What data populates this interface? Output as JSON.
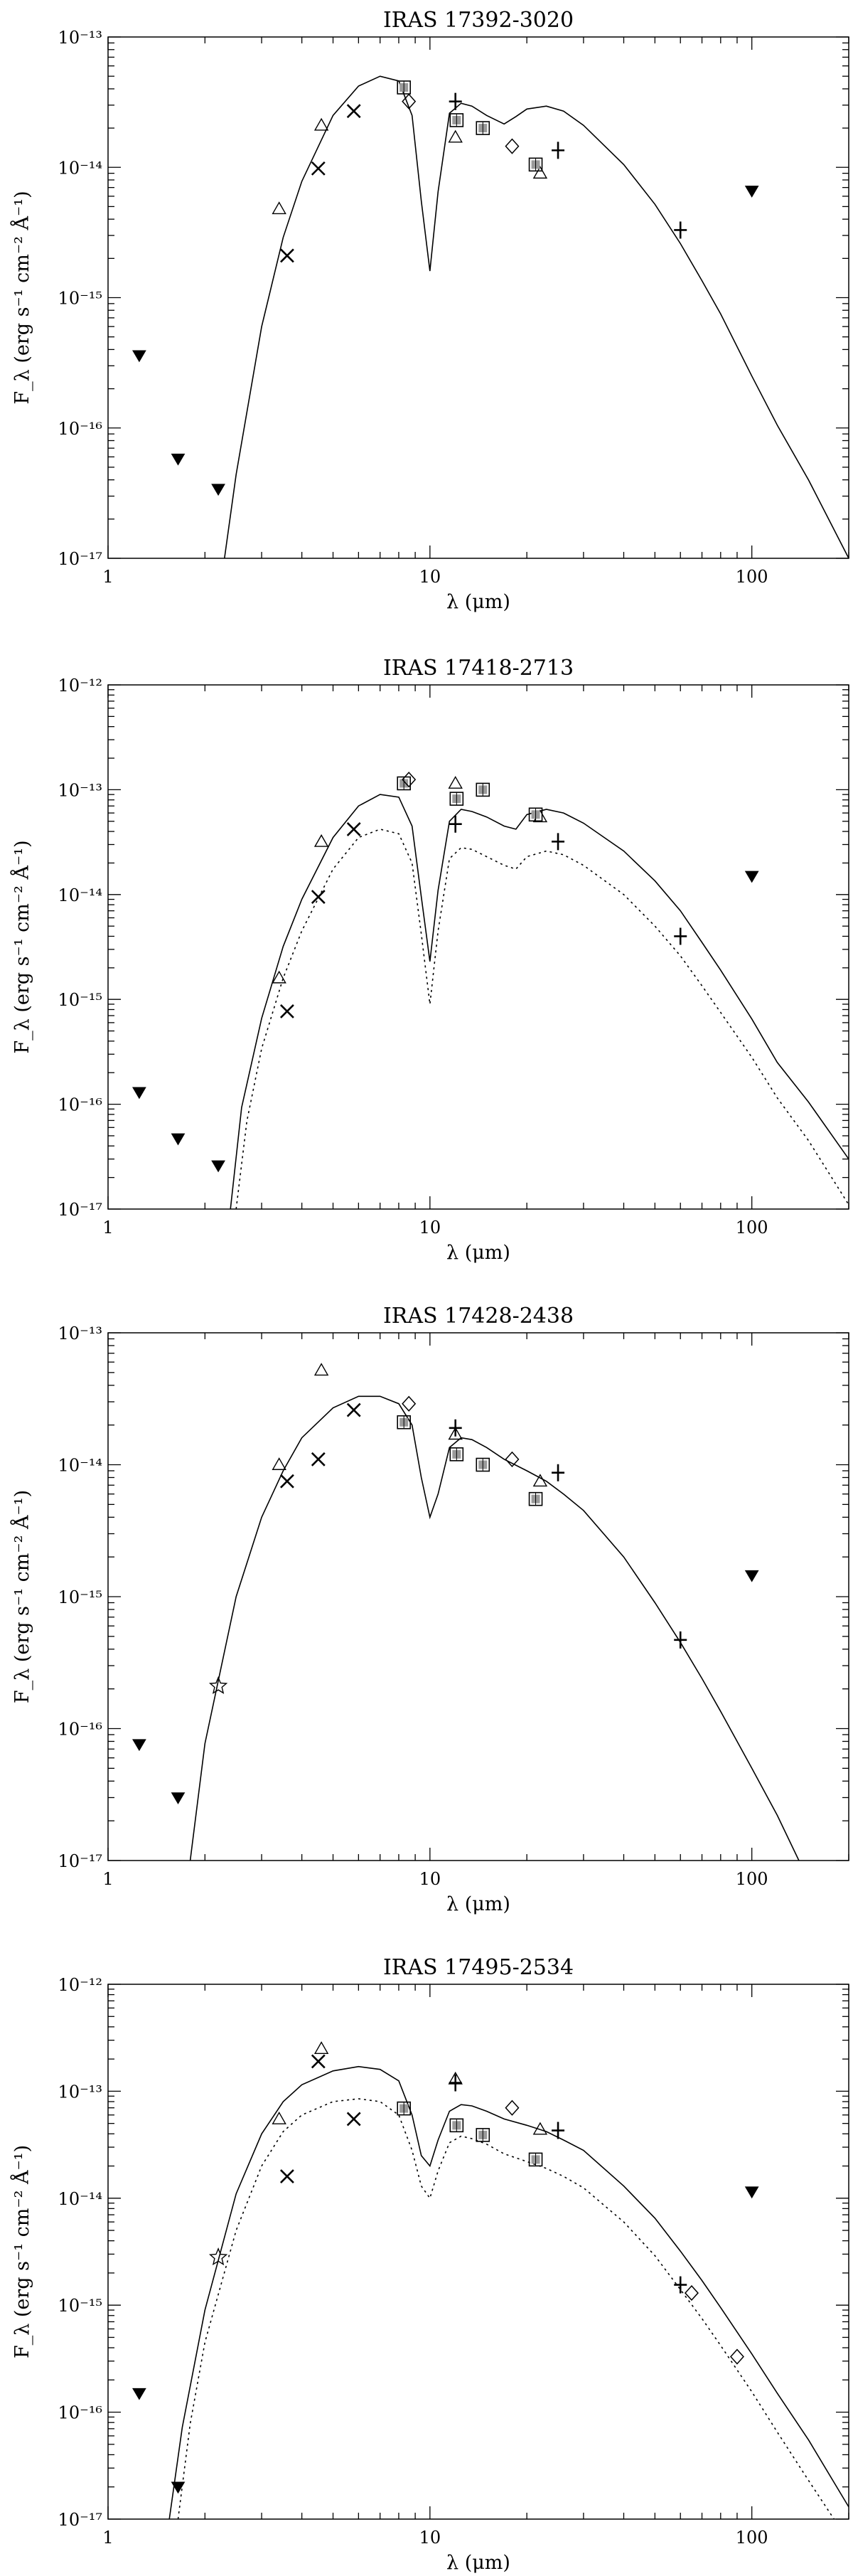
{
  "chart_data": [
    {
      "type": "scatter",
      "title": "IRAS 17392-3020",
      "xlabel": "λ (μm)",
      "ylabel": "F_λ (erg s⁻¹ cm⁻² Å⁻¹)",
      "x_scale": "log",
      "y_scale": "log",
      "xlim": [
        1,
        200
      ],
      "ylim": [
        1e-17,
        1e-13
      ],
      "x_tick_labels": [
        "1",
        "10",
        "100"
      ],
      "y_tick_labels": [
        "10⁻¹⁷",
        "10⁻¹⁶",
        "10⁻¹⁵",
        "10⁻¹⁴",
        "10⁻¹³"
      ],
      "series": [
        {
          "marker": "triangle-down-filled",
          "x": [
            1.25,
            1.65,
            2.2,
            100
          ],
          "y": [
            3.6e-16,
            5.8e-17,
            3.4e-17,
            6.6e-15
          ]
        },
        {
          "marker": "cross",
          "x": [
            3.6,
            4.5,
            5.8
          ],
          "y": [
            2.1e-15,
            9.8e-15,
            2.7e-14
          ]
        },
        {
          "marker": "triangle",
          "x": [
            3.4,
            4.6,
            12,
            22
          ],
          "y": [
            4.8e-15,
            2.1e-14,
            1.7e-14,
            9e-15
          ]
        },
        {
          "marker": "square",
          "x": [
            8.3,
            12.1,
            14.6,
            21.3
          ],
          "y": [
            4.1e-14,
            2.3e-14,
            2e-14,
            1.05e-14
          ]
        },
        {
          "marker": "diamond",
          "x": [
            8.6,
            18
          ],
          "y": [
            3.2e-14,
            1.45e-14
          ]
        },
        {
          "marker": "plus",
          "x": [
            12,
            25,
            60
          ],
          "y": [
            3.2e-14,
            1.35e-14,
            3.3e-15
          ]
        }
      ],
      "models": [
        {
          "line": "solid",
          "x": [
            2.3,
            2.5,
            3,
            3.5,
            4,
            5,
            6,
            7,
            8,
            8.8,
            9.4,
            10,
            10.6,
            11.5,
            12.5,
            13.5,
            15,
            17,
            18.5,
            20,
            23,
            26,
            30,
            40,
            50,
            60,
            70,
            80,
            100,
            120,
            150,
            200
          ],
          "y": [
            1e-17,
            4.4e-17,
            6e-16,
            2.9e-15,
            7.8e-15,
            2.5e-14,
            4.2e-14,
            5e-14,
            4.6e-14,
            2.5e-14,
            5.5e-15,
            1.6e-15,
            6.5e-15,
            2.6e-14,
            3.1e-14,
            2.95e-14,
            2.5e-14,
            2.15e-14,
            2.45e-14,
            2.8e-14,
            2.95e-14,
            2.7e-14,
            2.1e-14,
            1.05e-14,
            5.2e-15,
            2.6e-15,
            1.35e-15,
            7.5e-16,
            2.5e-16,
            1.05e-16,
            4e-17,
            1e-17
          ]
        }
      ]
    },
    {
      "type": "scatter",
      "title": "IRAS 17418-2713",
      "xlabel": "λ (μm)",
      "ylabel": "F_λ (erg s⁻¹ cm⁻² Å⁻¹)",
      "x_scale": "log",
      "y_scale": "log",
      "xlim": [
        1,
        200
      ],
      "ylim": [
        1e-17,
        1e-12
      ],
      "x_tick_labels": [
        "1",
        "10",
        "100"
      ],
      "y_tick_labels": [
        "10⁻¹⁷",
        "10⁻¹⁶",
        "10⁻¹⁵",
        "10⁻¹⁴",
        "10⁻¹³",
        "10⁻¹²"
      ],
      "series": [
        {
          "marker": "triangle-down-filled",
          "x": [
            1.25,
            1.65,
            2.2,
            100
          ],
          "y": [
            1.3e-16,
            4.7e-17,
            2.6e-17,
            1.5e-14
          ]
        },
        {
          "marker": "cross",
          "x": [
            3.6,
            4.5,
            5.8
          ],
          "y": [
            7.7e-16,
            9.5e-15,
            4.2e-14
          ]
        },
        {
          "marker": "triangle",
          "x": [
            3.4,
            4.6,
            12,
            22
          ],
          "y": [
            1.6e-15,
            3.2e-14,
            1.15e-13,
            5.5e-14
          ]
        },
        {
          "marker": "square",
          "x": [
            8.3,
            12.1,
            14.6,
            21.3
          ],
          "y": [
            1.15e-13,
            8.2e-14,
            1e-13,
            5.8e-14
          ]
        },
        {
          "marker": "diamond",
          "x": [
            8.6
          ],
          "y": [
            1.25e-13
          ]
        },
        {
          "marker": "plus",
          "x": [
            12,
            25,
            60
          ],
          "y": [
            4.7e-14,
            3.2e-14,
            4e-15
          ]
        }
      ],
      "models": [
        {
          "line": "solid",
          "x": [
            2.4,
            2.6,
            3,
            3.5,
            4,
            5,
            6,
            7,
            8,
            8.8,
            9.4,
            10,
            10.6,
            11.5,
            12.5,
            13.5,
            15,
            17,
            18.5,
            20,
            23,
            26,
            30,
            40,
            50,
            60,
            70,
            80,
            100,
            120,
            150,
            200
          ],
          "y": [
            1e-17,
            9.3e-17,
            6.6e-16,
            3.2e-15,
            9e-15,
            3.5e-14,
            7e-14,
            9e-14,
            8.5e-14,
            4.5e-14,
            9.5e-15,
            2.3e-15,
            1.1e-14,
            5e-14,
            6.5e-14,
            6.2e-14,
            5.5e-14,
            4.5e-14,
            4.2e-14,
            5.8e-14,
            6.5e-14,
            6e-14,
            4.8e-14,
            2.6e-14,
            1.35e-14,
            7e-15,
            3.5e-15,
            1.9e-15,
            6.5e-16,
            2.5e-16,
            1.05e-16,
            3e-17
          ]
        },
        {
          "line": "dotted",
          "x": [
            2.5,
            2.7,
            3,
            3.5,
            4,
            5,
            6,
            7,
            8,
            8.8,
            9.4,
            10,
            10.6,
            11.5,
            12.5,
            13.5,
            15,
            17,
            18.5,
            20,
            23,
            26,
            30,
            40,
            50,
            60,
            70,
            80,
            100,
            120,
            150,
            200
          ],
          "y": [
            1e-17,
            6.9e-17,
            3.4e-16,
            1.6e-15,
            4.5e-15,
            1.75e-14,
            3.5e-14,
            4.2e-14,
            3.8e-14,
            2e-14,
            4.2e-15,
            9e-16,
            4.5e-15,
            2.2e-14,
            2.8e-14,
            2.7e-14,
            2.3e-14,
            1.9e-14,
            1.75e-14,
            2.3e-14,
            2.6e-14,
            2.4e-14,
            1.9e-14,
            1e-14,
            5e-15,
            2.6e-15,
            1.35e-15,
            7.5e-16,
            2.8e-16,
            1.15e-16,
            4.5e-17,
            1.1e-17
          ]
        }
      ]
    },
    {
      "type": "scatter",
      "title": "IRAS 17428-2438",
      "xlabel": "λ (μm)",
      "ylabel": "F_λ (erg s⁻¹ cm⁻² Å⁻¹)",
      "x_scale": "log",
      "y_scale": "log",
      "xlim": [
        1,
        200
      ],
      "ylim": [
        1e-17,
        1e-13
      ],
      "x_tick_labels": [
        "1",
        "10",
        "100"
      ],
      "y_tick_labels": [
        "10⁻¹⁷",
        "10⁻¹⁶",
        "10⁻¹⁵",
        "10⁻¹⁴",
        "10⁻¹³"
      ],
      "series": [
        {
          "marker": "triangle-down-filled",
          "x": [
            1.25,
            1.65,
            100
          ],
          "y": [
            7.6e-17,
            3e-17,
            1.45e-15
          ]
        },
        {
          "marker": "cross",
          "x": [
            3.6,
            4.5,
            5.8
          ],
          "y": [
            7.5e-15,
            1.1e-14,
            2.6e-14
          ]
        },
        {
          "marker": "triangle",
          "x": [
            3.4,
            4.6,
            12,
            22
          ],
          "y": [
            1e-14,
            5.2e-14,
            1.7e-14,
            7.5e-15
          ]
        },
        {
          "marker": "square",
          "x": [
            8.3,
            12.1,
            14.6,
            21.3
          ],
          "y": [
            2.1e-14,
            1.2e-14,
            1e-14,
            5.5e-15
          ]
        },
        {
          "marker": "diamond",
          "x": [
            8.6,
            18
          ],
          "y": [
            2.9e-14,
            1.1e-14
          ]
        },
        {
          "marker": "plus",
          "x": [
            12,
            25,
            60
          ],
          "y": [
            1.9e-14,
            8.7e-15,
            4.7e-16
          ]
        },
        {
          "marker": "star",
          "x": [
            2.2
          ],
          "y": [
            2.1e-16
          ]
        }
      ],
      "models": [
        {
          "line": "solid",
          "x": [
            1.8,
            2,
            2.5,
            3,
            3.5,
            4,
            5,
            6,
            7,
            8,
            8.8,
            9.4,
            10,
            10.6,
            11.5,
            12.5,
            13.5,
            15,
            17,
            20,
            23,
            26,
            30,
            40,
            50,
            60,
            70,
            80,
            100,
            120,
            140
          ],
          "y": [
            1e-17,
            7.7e-17,
            1e-15,
            4e-15,
            9e-15,
            1.6e-14,
            2.7e-14,
            3.3e-14,
            3.3e-14,
            2.9e-14,
            2e-14,
            8e-15,
            4e-15,
            6e-15,
            1.35e-14,
            1.6e-14,
            1.55e-14,
            1.35e-14,
            1.1e-14,
            9e-15,
            7.5e-15,
            6e-15,
            4.5e-15,
            2e-15,
            9e-16,
            4.5e-16,
            2.4e-16,
            1.35e-16,
            5e-17,
            2.2e-17,
            1e-17
          ]
        }
      ]
    },
    {
      "type": "scatter",
      "title": "IRAS 17495-2534",
      "xlabel": "λ (μm)",
      "ylabel": "F_λ (erg s⁻¹ cm⁻² Å⁻¹)",
      "x_scale": "log",
      "y_scale": "log",
      "xlim": [
        1,
        200
      ],
      "ylim": [
        1e-17,
        1e-12
      ],
      "x_tick_labels": [
        "1",
        "10",
        "100"
      ],
      "y_tick_labels": [
        "10⁻¹⁷",
        "10⁻¹⁶",
        "10⁻¹⁵",
        "10⁻¹⁴",
        "10⁻¹³",
        "10⁻¹²"
      ],
      "series": [
        {
          "marker": "triangle-down-filled",
          "x": [
            1.25,
            1.65,
            100
          ],
          "y": [
            1.5e-16,
            2e-17,
            1.15e-14
          ]
        },
        {
          "marker": "cross",
          "x": [
            3.6,
            4.5,
            5.8
          ],
          "y": [
            1.6e-14,
            1.9e-13,
            5.5e-14
          ]
        },
        {
          "marker": "triangle",
          "x": [
            3.4,
            4.6,
            12,
            22
          ],
          "y": [
            5.5e-14,
            2.5e-13,
            1.3e-13,
            4.4e-14
          ]
        },
        {
          "marker": "square",
          "x": [
            8.3,
            12.1,
            14.6,
            21.3
          ],
          "y": [
            6.9e-14,
            4.8e-14,
            3.9e-14,
            2.3e-14
          ]
        },
        {
          "marker": "diamond",
          "x": [
            18,
            65,
            90
          ],
          "y": [
            7e-14,
            1.3e-15,
            3.3e-16
          ]
        },
        {
          "marker": "plus",
          "x": [
            12,
            25,
            60
          ],
          "y": [
            1.2e-13,
            4.3e-14,
            1.55e-15
          ]
        },
        {
          "marker": "star",
          "x": [
            2.2
          ],
          "y": [
            2.8e-15
          ]
        }
      ],
      "models": [
        {
          "line": "solid",
          "x": [
            1.55,
            1.7,
            2,
            2.5,
            3,
            3.5,
            4,
            5,
            6,
            7,
            8,
            8.8,
            9.4,
            10,
            10.6,
            11.5,
            12.5,
            13.5,
            15,
            17,
            20,
            23,
            26,
            30,
            40,
            50,
            60,
            70,
            80,
            100,
            120,
            150,
            200
          ],
          "y": [
            1e-17,
            7.2e-17,
            9e-16,
            1.1e-14,
            4e-14,
            8e-14,
            1.15e-13,
            1.55e-13,
            1.7e-13,
            1.6e-13,
            1.25e-13,
            6e-14,
            2.5e-14,
            2e-14,
            3.5e-14,
            6.5e-14,
            7.5e-14,
            7.3e-14,
            6.5e-14,
            5.5e-14,
            4.8e-14,
            4.2e-14,
            3.5e-14,
            2.8e-14,
            1.3e-14,
            6.5e-15,
            3.2e-15,
            1.7e-15,
            9.5e-16,
            3.5e-16,
            1.5e-16,
            5.5e-17,
            1.3e-17
          ]
        },
        {
          "line": "dotted",
          "x": [
            1.65,
            1.8,
            2,
            2.5,
            3,
            3.5,
            4,
            5,
            6,
            7,
            8,
            8.8,
            9.4,
            10,
            10.6,
            11.5,
            12.5,
            13.5,
            15,
            17,
            20,
            23,
            26,
            30,
            40,
            50,
            60,
            70,
            80,
            100,
            120,
            150,
            180
          ],
          "y": [
            1e-17,
            7.8e-17,
            4.5e-16,
            5e-15,
            2e-14,
            4.2e-14,
            6e-14,
            8e-14,
            8.5e-14,
            8e-14,
            6e-14,
            2.8e-14,
            1.3e-14,
            1e-14,
            1.8e-14,
            3.3e-14,
            3.8e-14,
            3.6e-14,
            3.2e-14,
            2.6e-14,
            2.2e-14,
            1.9e-14,
            1.6e-14,
            1.25e-14,
            6e-15,
            2.9e-15,
            1.4e-15,
            7.5e-16,
            4.2e-16,
            1.55e-16,
            6.5e-17,
            2.3e-17,
            1e-17
          ]
        }
      ]
    }
  ]
}
